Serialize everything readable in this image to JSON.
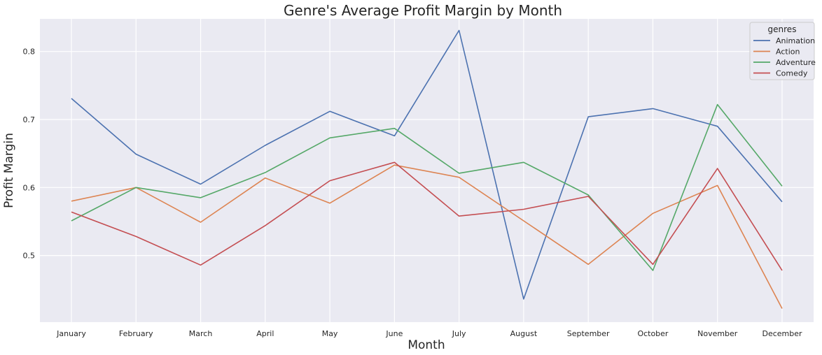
{
  "chart_data": {
    "type": "line",
    "title": "Genre's Average Profit Margin by Month",
    "xlabel": "Month",
    "ylabel": "Profit Margin",
    "categories": [
      "January",
      "February",
      "March",
      "April",
      "May",
      "June",
      "July",
      "August",
      "September",
      "October",
      "November",
      "December"
    ],
    "ylim": [
      0.402,
      0.848
    ],
    "yticks": [
      0.5,
      0.6,
      0.7,
      0.8
    ],
    "grid": true,
    "legend": {
      "title": "genres",
      "position": "top-right"
    },
    "series": [
      {
        "name": "Animation",
        "color": "#4c72b0",
        "values": [
          0.731,
          0.649,
          0.605,
          0.662,
          0.712,
          0.676,
          0.831,
          0.436,
          0.704,
          0.716,
          0.69,
          0.579
        ]
      },
      {
        "name": "Action",
        "color": "#dd8452",
        "values": [
          0.58,
          0.6,
          0.549,
          0.614,
          0.577,
          0.633,
          0.615,
          0.551,
          0.487,
          0.562,
          0.603,
          0.422
        ]
      },
      {
        "name": "Adventure",
        "color": "#55a868",
        "values": [
          0.551,
          0.6,
          0.585,
          0.622,
          0.673,
          0.687,
          0.621,
          0.637,
          0.589,
          0.478,
          0.722,
          0.602
        ]
      },
      {
        "name": "Comedy",
        "color": "#c44e52",
        "values": [
          0.564,
          0.528,
          0.486,
          0.544,
          0.61,
          0.637,
          0.558,
          0.568,
          0.587,
          0.487,
          0.628,
          0.478
        ]
      }
    ]
  }
}
